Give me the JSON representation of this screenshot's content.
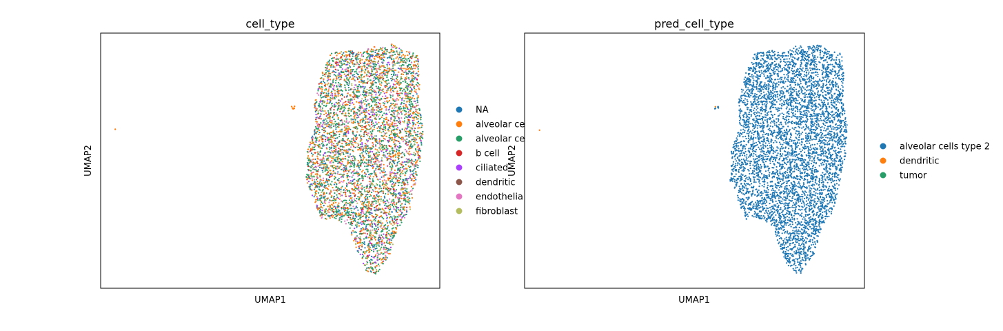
{
  "chart_data": [
    {
      "type": "scatter",
      "title": "cell_type",
      "xlabel": "UMAP1",
      "ylabel": "UMAP2",
      "xticks": [],
      "yticks": [],
      "grid": false,
      "legend_position": "right, outside",
      "legend": [
        {
          "label": "NA",
          "color": "#1f77b4"
        },
        {
          "label": "alveolar ce",
          "color": "#ff7f0e"
        },
        {
          "label": "alveolar ce",
          "color": "#279e68"
        },
        {
          "label": "b cell",
          "color": "#d62728"
        },
        {
          "label": "ciliated",
          "color": "#aa40fc"
        },
        {
          "label": "dendritic",
          "color": "#8c564b"
        },
        {
          "label": "endothelia",
          "color": "#e377c2"
        },
        {
          "label": "fibroblast",
          "color": "#b5bd61"
        }
      ],
      "series": [
        {
          "color": "#279e68",
          "weight": 0.34
        },
        {
          "color": "#ff7f0e",
          "weight": 0.26
        },
        {
          "color": "#1f77b4",
          "weight": 0.1
        },
        {
          "color": "#e377c2",
          "weight": 0.1
        },
        {
          "color": "#b5bd61",
          "weight": 0.07
        },
        {
          "color": "#d62728",
          "weight": 0.05
        },
        {
          "color": "#aa40fc",
          "weight": 0.05
        },
        {
          "color": "#8c564b",
          "weight": 0.03
        }
      ]
    },
    {
      "type": "scatter",
      "title": "pred_cell_type",
      "xlabel": "UMAP1",
      "ylabel": "UMAP2",
      "xticks": [],
      "yticks": [],
      "grid": false,
      "legend_position": "right, outside",
      "legend": [
        {
          "label": "alveolar cells type 2",
          "color": "#1f77b4"
        },
        {
          "label": "dendritic",
          "color": "#ff7f0e"
        },
        {
          "label": "tumor",
          "color": "#279e68"
        }
      ],
      "series": [
        {
          "color": "#1f77b4",
          "weight": 1.0
        }
      ]
    }
  ]
}
